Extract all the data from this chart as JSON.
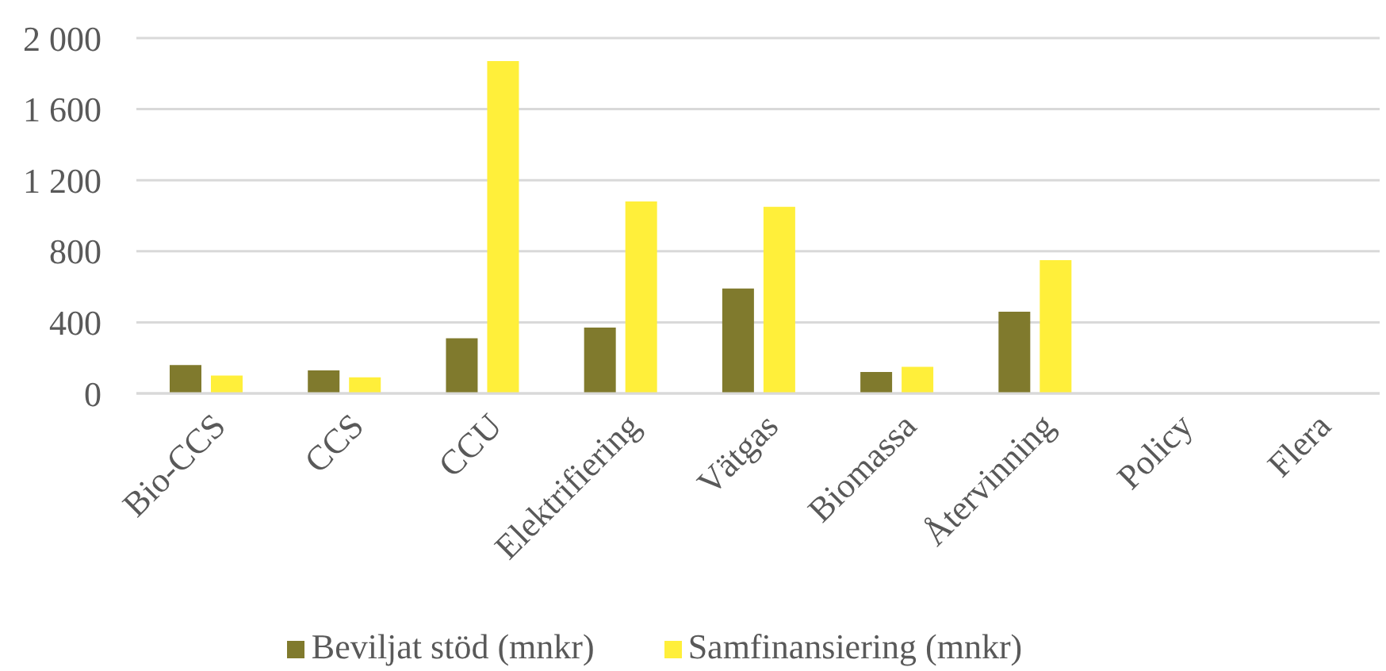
{
  "chart_data": {
    "type": "bar",
    "categories": [
      "Bio-CCS",
      "CCS",
      "CCU",
      "Elektrifiering",
      "Vätgas",
      "Biomassa",
      "Återvinning",
      "Policy",
      "Flera"
    ],
    "series": [
      {
        "name": "Beviljat stöd (mnkr)",
        "color": "#807a2d",
        "values": [
          160,
          130,
          310,
          370,
          590,
          120,
          460,
          0,
          0
        ]
      },
      {
        "name": "Samfinansiering (mnkr)",
        "color": "#ffef3a",
        "values": [
          100,
          90,
          1870,
          1080,
          1050,
          150,
          750,
          0,
          0
        ]
      }
    ],
    "ylim": [
      0,
      2000
    ],
    "yticks": [
      0,
      400,
      800,
      {
        "value": 1200,
        "label": "1 200"
      },
      {
        "value": 1600,
        "label": "1 600"
      },
      {
        "value": 2000,
        "label": "2 000"
      }
    ],
    "grid": "y",
    "legend": "bottom"
  }
}
